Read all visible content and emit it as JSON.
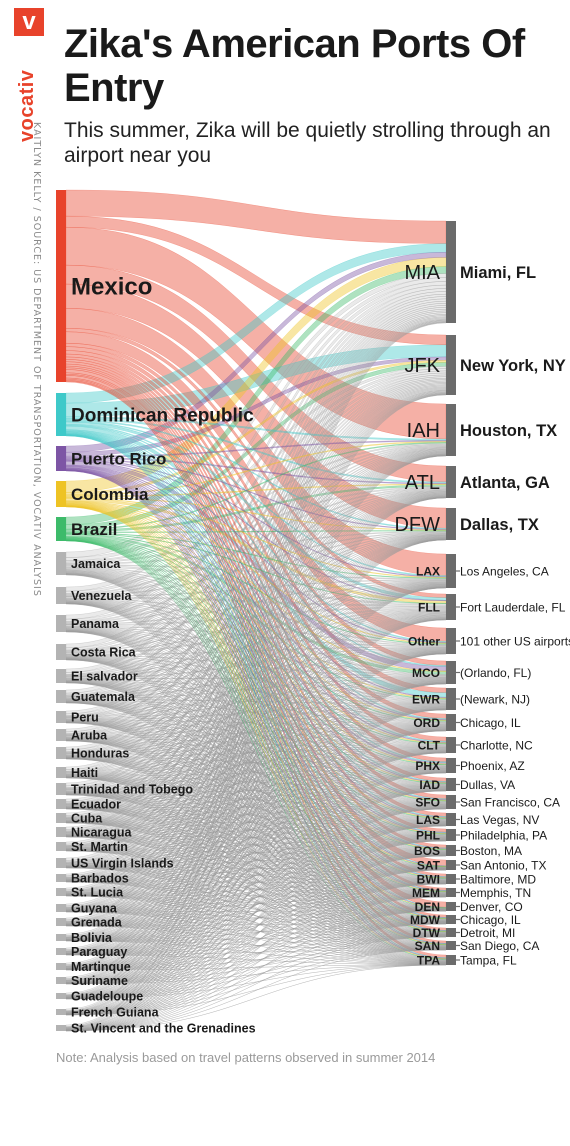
{
  "brand": {
    "logo_letter": "v",
    "wordmark": "vocativ",
    "accent": "#e8432b"
  },
  "credit": "KAITLYN KELLY / SOURCE: US DEPARTMENT OF TRANSPORTATION, VOCATIV ANALYSIS",
  "title": "Zika's American Ports Of Entry",
  "subtitle": "This summer, Zika will be quietly strolling through an airport near you",
  "note": "Note: Analysis based on travel patterns observed in summer 2014",
  "chart_data": {
    "type": "sankey",
    "sources": [
      {
        "label": "Mexico",
        "color": "#e8432b",
        "weight": 190
      },
      {
        "label": "Dominican Republic",
        "color": "#3ec9c9",
        "weight": 42
      },
      {
        "label": "Puerto Rico",
        "color": "#7d55a5",
        "weight": 24
      },
      {
        "label": "Colombia",
        "color": "#eec324",
        "weight": 24
      },
      {
        "label": "Brazil",
        "color": "#3dbb6a",
        "weight": 24
      },
      {
        "label": "Jamaica",
        "color": "#b3b3b3",
        "weight": 20
      },
      {
        "label": "Venezuela",
        "color": "#b3b3b3",
        "weight": 18
      },
      {
        "label": "Panama",
        "color": "#b3b3b3",
        "weight": 17
      },
      {
        "label": "Costa Rica",
        "color": "#b3b3b3",
        "weight": 16
      },
      {
        "label": "El salvador",
        "color": "#b3b3b3",
        "weight": 14
      },
      {
        "label": "Guatemala",
        "color": "#b3b3b3",
        "weight": 13
      },
      {
        "label": "Peru",
        "color": "#b3b3b3",
        "weight": 11
      },
      {
        "label": "Aruba",
        "color": "#b3b3b3",
        "weight": 11
      },
      {
        "label": "Honduras",
        "color": "#b3b3b3",
        "weight": 11
      },
      {
        "label": "Haiti",
        "color": "#b3b3b3",
        "weight": 10
      },
      {
        "label": "Trinidad and Tobego",
        "color": "#b3b3b3",
        "weight": 10
      },
      {
        "label": "Ecuador",
        "color": "#b3b3b3",
        "weight": 9
      },
      {
        "label": "Cuba",
        "color": "#b3b3b3",
        "weight": 9
      },
      {
        "label": "Nicaragua",
        "color": "#b3b3b3",
        "weight": 8
      },
      {
        "label": "St. Martin",
        "color": "#b3b3b3",
        "weight": 8
      },
      {
        "label": "US Virgin Islands",
        "color": "#b3b3b3",
        "weight": 8
      },
      {
        "label": "Barbados",
        "color": "#b3b3b3",
        "weight": 6
      },
      {
        "label": "St. Lucia",
        "color": "#b3b3b3",
        "weight": 6
      },
      {
        "label": "Guyana",
        "color": "#b3b3b3",
        "weight": 5
      },
      {
        "label": "Grenada",
        "color": "#b3b3b3",
        "weight": 5
      },
      {
        "label": "Bolivia",
        "color": "#b3b3b3",
        "weight": 4
      },
      {
        "label": "Paraguay",
        "color": "#b3b3b3",
        "weight": 3
      },
      {
        "label": "Martinque",
        "color": "#b3b3b3",
        "weight": 3
      },
      {
        "label": "Suriname",
        "color": "#b3b3b3",
        "weight": 3
      },
      {
        "label": "Guadeloupe",
        "color": "#b3b3b3",
        "weight": 2
      },
      {
        "label": "French Guiana",
        "color": "#b3b3b3",
        "weight": 2
      },
      {
        "label": "St. Vincent and the Grenadines",
        "color": "#b3b3b3",
        "weight": 2
      }
    ],
    "destinations": [
      {
        "code": "MIA",
        "name": "Miami, FL",
        "weight": 105
      },
      {
        "code": "JFK",
        "name": "New York, NY",
        "weight": 60
      },
      {
        "code": "IAH",
        "name": "Houston, TX",
        "weight": 50
      },
      {
        "code": "ATL",
        "name": "Atlanta, GA",
        "weight": 34
      },
      {
        "code": "DFW",
        "name": "Dallas, TX",
        "weight": 34
      },
      {
        "code": "LAX",
        "name": "Los Angeles, CA",
        "weight": 28
      },
      {
        "code": "FLL",
        "name": "Fort Lauderdale, FL",
        "weight": 22
      },
      {
        "code": "Other",
        "name": "101 other US airports",
        "weight": 20
      },
      {
        "code": "MCO",
        "name": "(Orlando, FL)",
        "weight": 16
      },
      {
        "code": "EWR",
        "name": "(Newark, NJ)",
        "weight": 16
      },
      {
        "code": "ORD",
        "name": "Chicago, IL",
        "weight": 12
      },
      {
        "code": "CLT",
        "name": "Charlotte, NC",
        "weight": 10
      },
      {
        "code": "PHX",
        "name": "Phoenix, AZ",
        "weight": 9
      },
      {
        "code": "IAD",
        "name": "Dullas, VA",
        "weight": 8
      },
      {
        "code": "SFO",
        "name": "San Francisco, CA",
        "weight": 8
      },
      {
        "code": "LAS",
        "name": "Las Vegas, NV",
        "weight": 7
      },
      {
        "code": "PHL",
        "name": "Philadelphia, PA",
        "weight": 6
      },
      {
        "code": "BOS",
        "name": "Boston, MA",
        "weight": 6
      },
      {
        "code": "SAT",
        "name": "San Antonio, TX",
        "weight": 5
      },
      {
        "code": "BWI",
        "name": "Baltimore, MD",
        "weight": 5
      },
      {
        "code": "MEM",
        "name": "Memphis, TN",
        "weight": 4
      },
      {
        "code": "DEN",
        "name": "Denver, CO",
        "weight": 4
      },
      {
        "code": "MDW",
        "name": "Chicago, IL",
        "weight": 4
      },
      {
        "code": "DTW",
        "name": "Detroit, MI",
        "weight": 4
      },
      {
        "code": "SAN",
        "name": "San Diego, CA",
        "weight": 3
      },
      {
        "code": "TPA",
        "name": "Tampa, FL",
        "weight": 3
      }
    ]
  }
}
